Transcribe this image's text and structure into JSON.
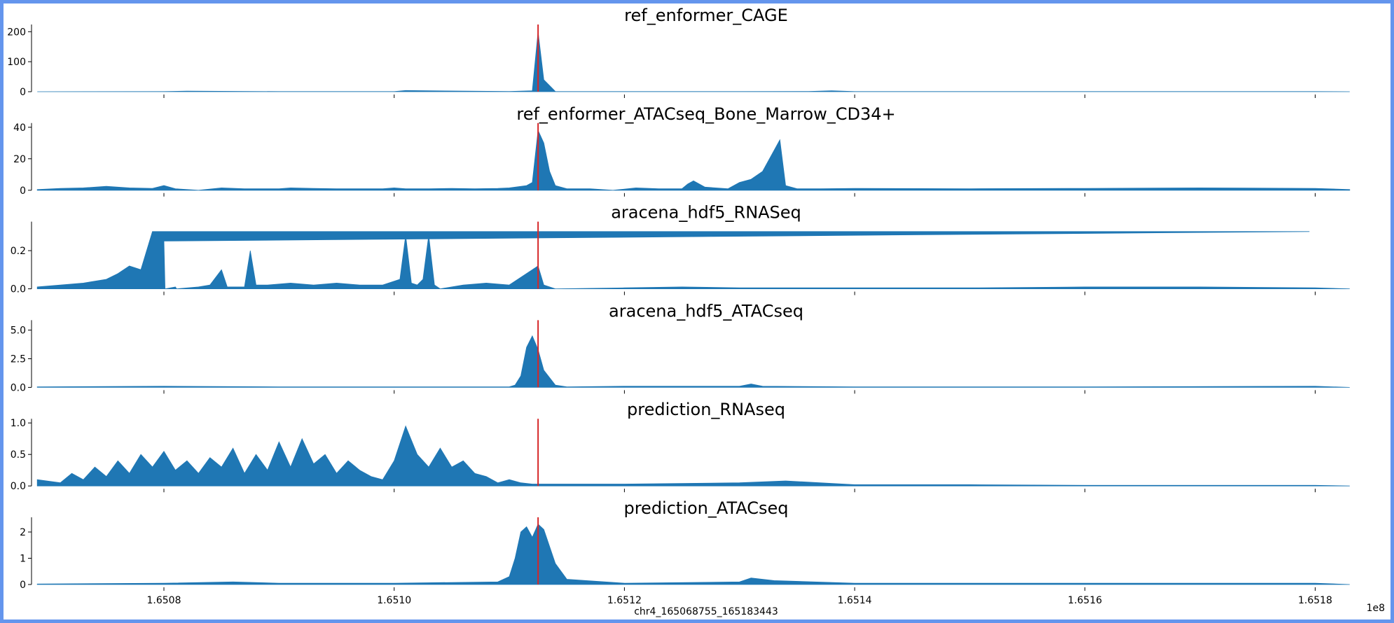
{
  "colors": {
    "fill": "#1f77b4",
    "marker": "#d62728",
    "frame": "#6495ED",
    "background": "#ffffff"
  },
  "xaxis": {
    "label": "chr4_165068755_165183443",
    "offset_label": "1e8",
    "range": [
      1.650685,
      1.651835
    ],
    "ticks": [
      1.6508,
      1.651,
      1.6512,
      1.6514,
      1.6516,
      1.6518
    ],
    "tick_labels": [
      "1.6508",
      "1.6510",
      "1.6512",
      "1.6514",
      "1.6516",
      "1.6518"
    ]
  },
  "chart_data": [
    {
      "type": "area",
      "title": "ref_enformer_CAGE",
      "ylim": [
        0,
        210
      ],
      "yticks": [
        0,
        100,
        200
      ],
      "ytick_labels": [
        "0",
        "100",
        "200"
      ],
      "marker_x": 1.651125,
      "x": [
        1.65069,
        1.6508,
        1.65082,
        1.6509,
        1.651,
        1.65101,
        1.65103,
        1.6511,
        1.65112,
        1.651125,
        1.65113,
        1.65114,
        1.6512,
        1.6513,
        1.65136,
        1.65138,
        1.6514,
        1.6516,
        1.6518,
        1.65183
      ],
      "y": [
        0,
        0.5,
        2,
        0.5,
        0.5,
        4,
        3,
        1,
        3,
        200,
        40,
        1,
        0.5,
        0.5,
        1,
        3,
        0.5,
        0.5,
        0.5,
        0
      ]
    },
    {
      "type": "area",
      "title": "ref_enformer_ATACseq_Bone_Marrow_CD34+",
      "ylim": [
        0,
        40
      ],
      "yticks": [
        0,
        20,
        40
      ],
      "ytick_labels": [
        "0",
        "20",
        "40"
      ],
      "marker_x": 1.651125,
      "x": [
        1.65069,
        1.65071,
        1.65073,
        1.65075,
        1.65077,
        1.65079,
        1.6508,
        1.65081,
        1.65083,
        1.65085,
        1.65087,
        1.65089,
        1.6509,
        1.65091,
        1.65093,
        1.65095,
        1.65097,
        1.65099,
        1.651,
        1.65101,
        1.65103,
        1.65105,
        1.65107,
        1.65109,
        1.6511,
        1.651115,
        1.65112,
        1.651125,
        1.65113,
        1.651135,
        1.65114,
        1.65115,
        1.65117,
        1.65119,
        1.65121,
        1.65123,
        1.65125,
        1.651255,
        1.65126,
        1.65127,
        1.65129,
        1.6513,
        1.65131,
        1.65132,
        1.651335,
        1.65134,
        1.65135,
        1.65137,
        1.6514,
        1.6515,
        1.6516,
        1.6517,
        1.6518,
        1.65183
      ],
      "y": [
        0.5,
        1.2,
        1.5,
        2.5,
        1.5,
        1.2,
        3,
        1,
        0,
        1.5,
        1,
        1,
        1,
        1.5,
        1.2,
        1,
        1,
        1,
        1.5,
        1,
        1,
        1.2,
        1,
        1.2,
        1.5,
        3,
        5,
        38,
        30,
        12,
        3,
        1,
        1,
        0,
        1.5,
        1,
        1,
        4,
        6,
        2,
        1,
        5,
        7,
        12,
        32,
        3,
        1,
        1,
        1.2,
        1,
        1.2,
        1.5,
        1.2,
        0.5
      ]
    },
    {
      "type": "area",
      "title": "aracena_hdf5_RNASeq",
      "ylim": [
        0,
        0.33
      ],
      "yticks": [
        0,
        0.2
      ],
      "ytick_labels": [
        "0.0",
        "0.2"
      ],
      "marker_x": 1.651125,
      "x": [
        1.65069,
        1.65071,
        1.65073,
        1.65075,
        1.65076,
        1.65077,
        1.65078,
        1.65079,
        1.651795,
        1.6508,
        1.650801,
        1.65081,
        1.650811,
        1.65083,
        1.65084,
        1.65085,
        1.650855,
        1.65086,
        1.65087,
        1.650875,
        1.65088,
        1.65089,
        1.65091,
        1.65093,
        1.65095,
        1.65097,
        1.65099,
        1.651005,
        1.65101,
        1.651015,
        1.65102,
        1.651025,
        1.65103,
        1.651035,
        1.65104,
        1.65106,
        1.65108,
        1.6511,
        1.65112,
        1.651125,
        1.65113,
        1.65114,
        1.6512,
        1.65125,
        1.6513,
        1.6514,
        1.6515,
        1.6516,
        1.6517,
        1.6518,
        1.65183
      ],
      "y": [
        0.01,
        0.02,
        0.03,
        0.05,
        0.08,
        0.12,
        0.1,
        0.3,
        0.3,
        0.25,
        0,
        0.01,
        0,
        0.01,
        0.02,
        0.1,
        0.01,
        0.01,
        0.01,
        0.2,
        0.02,
        0.02,
        0.03,
        0.02,
        0.03,
        0.02,
        0.02,
        0.05,
        0.28,
        0.03,
        0.02,
        0.05,
        0.28,
        0.02,
        0,
        0.02,
        0.03,
        0.02,
        0.1,
        0.12,
        0.02,
        0,
        0.005,
        0.01,
        0.005,
        0.005,
        0.005,
        0.01,
        0.01,
        0.005,
        0
      ]
    },
    {
      "type": "area",
      "title": "aracena_hdf5_ATACseq",
      "ylim": [
        0,
        5.5
      ],
      "yticks": [
        0,
        2.5,
        5
      ],
      "ytick_labels": [
        "0.0",
        "2.5",
        "5.0"
      ],
      "marker_x": 1.651125,
      "x": [
        1.65069,
        1.6508,
        1.6509,
        1.651,
        1.6511,
        1.651105,
        1.65111,
        1.651115,
        1.65112,
        1.651125,
        1.65113,
        1.65114,
        1.65115,
        1.6512,
        1.6513,
        1.65131,
        1.65132,
        1.6514,
        1.6516,
        1.6518,
        1.65183
      ],
      "y": [
        0.05,
        0.1,
        0.05,
        0.05,
        0.05,
        0.2,
        1,
        3.5,
        4.5,
        3.3,
        1.5,
        0.2,
        0.05,
        0.1,
        0.1,
        0.3,
        0.1,
        0.05,
        0.05,
        0.1,
        0
      ]
    },
    {
      "type": "area",
      "title": "prediction_RNAseq",
      "ylim": [
        0,
        1.0
      ],
      "yticks": [
        0,
        0.5,
        1.0
      ],
      "ytick_labels": [
        "0.0",
        "0.5",
        "1.0"
      ],
      "marker_x": 1.651125,
      "x": [
        1.65069,
        1.65071,
        1.65072,
        1.65073,
        1.65074,
        1.65075,
        1.65076,
        1.65077,
        1.65078,
        1.65079,
        1.6508,
        1.65081,
        1.65082,
        1.65083,
        1.65084,
        1.65085,
        1.65086,
        1.65087,
        1.65088,
        1.65089,
        1.6509,
        1.65091,
        1.65092,
        1.65093,
        1.65094,
        1.65095,
        1.65096,
        1.65097,
        1.65098,
        1.65099,
        1.651,
        1.65101,
        1.65102,
        1.65103,
        1.65104,
        1.65105,
        1.65106,
        1.65107,
        1.65108,
        1.65109,
        1.6511,
        1.65111,
        1.65112,
        1.65114,
        1.6512,
        1.6513,
        1.65134,
        1.6514,
        1.6515,
        1.6516,
        1.6517,
        1.6518,
        1.65183
      ],
      "y": [
        0.1,
        0.05,
        0.2,
        0.1,
        0.3,
        0.15,
        0.4,
        0.2,
        0.5,
        0.3,
        0.55,
        0.25,
        0.4,
        0.2,
        0.45,
        0.3,
        0.6,
        0.2,
        0.5,
        0.25,
        0.7,
        0.3,
        0.75,
        0.35,
        0.5,
        0.2,
        0.4,
        0.25,
        0.15,
        0.1,
        0.4,
        0.95,
        0.5,
        0.3,
        0.6,
        0.3,
        0.4,
        0.2,
        0.15,
        0.05,
        0.1,
        0.05,
        0.03,
        0.03,
        0.03,
        0.05,
        0.08,
        0.02,
        0.02,
        0.01,
        0.01,
        0.01,
        0
      ]
    },
    {
      "type": "area",
      "title": "prediction_ATACseq",
      "ylim": [
        0,
        2.4
      ],
      "yticks": [
        0,
        1,
        2
      ],
      "ytick_labels": [
        "0",
        "1",
        "2"
      ],
      "marker_x": 1.651125,
      "x": [
        1.65069,
        1.6508,
        1.65086,
        1.6509,
        1.651,
        1.65109,
        1.6511,
        1.651105,
        1.65111,
        1.651115,
        1.65112,
        1.651125,
        1.65113,
        1.65114,
        1.65115,
        1.6512,
        1.6513,
        1.65131,
        1.65133,
        1.6514,
        1.6516,
        1.6518,
        1.65183
      ],
      "y": [
        0.02,
        0.05,
        0.1,
        0.05,
        0.05,
        0.1,
        0.3,
        1.0,
        2.0,
        2.2,
        1.8,
        2.3,
        2.1,
        0.8,
        0.2,
        0.05,
        0.1,
        0.25,
        0.15,
        0.05,
        0.05,
        0.05,
        0
      ]
    }
  ]
}
